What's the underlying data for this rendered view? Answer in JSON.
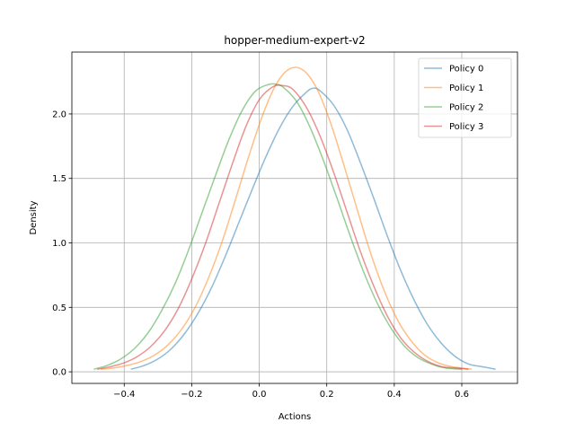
{
  "chart_data": {
    "type": "line",
    "title": "hopper-medium-expert-v2",
    "xlabel": "Actions",
    "ylabel": "Density",
    "xlim": [
      -0.555,
      0.765
    ],
    "ylim": [
      -0.09,
      2.48
    ],
    "xticks": [
      -0.4,
      -0.2,
      0.0,
      0.2,
      0.4,
      0.6
    ],
    "xtick_labels": [
      "−0.4",
      "−0.2",
      "0.0",
      "0.2",
      "0.4",
      "0.6"
    ],
    "yticks": [
      0.0,
      0.5,
      1.0,
      1.5,
      2.0
    ],
    "ytick_labels": [
      "0.0",
      "0.5",
      "1.0",
      "1.5",
      "2.0"
    ],
    "grid": true,
    "legend_position": "top-right",
    "series": [
      {
        "name": "Policy 0",
        "color": "#1f77b4",
        "x": [
          -0.38,
          -0.34,
          -0.3,
          -0.26,
          -0.22,
          -0.18,
          -0.14,
          -0.1,
          -0.06,
          -0.02,
          0.02,
          0.06,
          0.1,
          0.14,
          0.16,
          0.18,
          0.22,
          0.26,
          0.3,
          0.34,
          0.38,
          0.42,
          0.46,
          0.5,
          0.54,
          0.58,
          0.62,
          0.66,
          0.7
        ],
        "y": [
          0.02,
          0.05,
          0.1,
          0.18,
          0.3,
          0.46,
          0.66,
          0.9,
          1.16,
          1.42,
          1.67,
          1.89,
          2.06,
          2.17,
          2.2,
          2.18,
          2.07,
          1.88,
          1.62,
          1.34,
          1.05,
          0.78,
          0.55,
          0.36,
          0.22,
          0.12,
          0.06,
          0.04,
          0.02
        ]
      },
      {
        "name": "Policy 1",
        "color": "#ff7f0e",
        "x": [
          -0.47,
          -0.43,
          -0.39,
          -0.35,
          -0.31,
          -0.27,
          -0.23,
          -0.19,
          -0.15,
          -0.11,
          -0.07,
          -0.03,
          0.01,
          0.05,
          0.09,
          0.13,
          0.17,
          0.21,
          0.25,
          0.29,
          0.33,
          0.37,
          0.41,
          0.45,
          0.49,
          0.53,
          0.57,
          0.63
        ],
        "y": [
          0.02,
          0.03,
          0.05,
          0.08,
          0.13,
          0.21,
          0.33,
          0.5,
          0.73,
          1.01,
          1.34,
          1.68,
          1.99,
          2.23,
          2.35,
          2.34,
          2.2,
          1.94,
          1.61,
          1.26,
          0.92,
          0.63,
          0.4,
          0.24,
          0.13,
          0.07,
          0.04,
          0.02
        ]
      },
      {
        "name": "Policy 2",
        "color": "#2ca02c",
        "x": [
          -0.49,
          -0.45,
          -0.41,
          -0.37,
          -0.33,
          -0.29,
          -0.25,
          -0.21,
          -0.17,
          -0.13,
          -0.09,
          -0.05,
          -0.01,
          0.03,
          0.05,
          0.07,
          0.11,
          0.15,
          0.19,
          0.23,
          0.27,
          0.31,
          0.35,
          0.39,
          0.43,
          0.47,
          0.51,
          0.55,
          0.6
        ],
        "y": [
          0.02,
          0.05,
          0.1,
          0.18,
          0.3,
          0.47,
          0.68,
          0.94,
          1.23,
          1.52,
          1.8,
          2.03,
          2.18,
          2.23,
          2.23,
          2.21,
          2.1,
          1.9,
          1.64,
          1.35,
          1.05,
          0.77,
          0.53,
          0.34,
          0.2,
          0.11,
          0.06,
          0.03,
          0.02
        ]
      },
      {
        "name": "Policy 3",
        "color": "#d62728",
        "x": [
          -0.48,
          -0.44,
          -0.4,
          -0.36,
          -0.32,
          -0.28,
          -0.24,
          -0.2,
          -0.16,
          -0.12,
          -0.08,
          -0.04,
          0.0,
          0.04,
          0.07,
          0.1,
          0.14,
          0.18,
          0.22,
          0.26,
          0.3,
          0.34,
          0.38,
          0.42,
          0.46,
          0.5,
          0.54,
          0.58,
          0.62
        ],
        "y": [
          0.02,
          0.04,
          0.07,
          0.12,
          0.2,
          0.32,
          0.49,
          0.72,
          0.99,
          1.3,
          1.61,
          1.9,
          2.11,
          2.21,
          2.22,
          2.19,
          2.05,
          1.83,
          1.55,
          1.24,
          0.93,
          0.66,
          0.43,
          0.26,
          0.15,
          0.08,
          0.04,
          0.03,
          0.02
        ]
      }
    ]
  }
}
